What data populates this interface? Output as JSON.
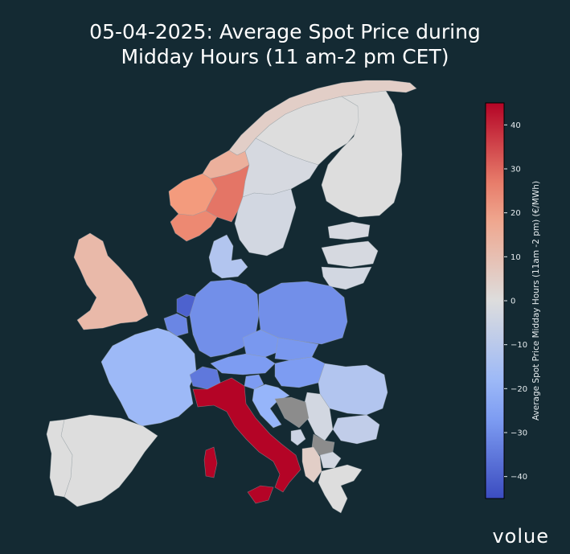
{
  "title": {
    "line1": "05-04-2025: Average Spot Price during",
    "line2": "Midday Hours (11 am-2 pm CET)"
  },
  "colorbar": {
    "label": "Average Spot Price Midday Hours (11am -2 pm) (€/MWh)",
    "min": -45,
    "max": 45,
    "ticks": [
      "40",
      "30",
      "20",
      "10",
      "0",
      "−10",
      "−20",
      "−30",
      "−40"
    ],
    "tick_values": [
      40,
      30,
      20,
      10,
      0,
      -10,
      -20,
      -30,
      -40
    ],
    "colormap": "coolwarm"
  },
  "colors": {
    "background": "#142a33",
    "no_data": "#8c8c8c",
    "border": "#9aa3a8"
  },
  "regions": [
    {
      "name": "Norway North",
      "value": 5
    },
    {
      "name": "Norway Central",
      "value": 15
    },
    {
      "name": "Norway West",
      "value": 22
    },
    {
      "name": "Norway South",
      "value": 25
    },
    {
      "name": "Norway South-East",
      "value": 28
    },
    {
      "name": "Sweden North",
      "value": 0
    },
    {
      "name": "Sweden Central",
      "value": -2
    },
    {
      "name": "Sweden South",
      "value": -3
    },
    {
      "name": "Finland",
      "value": 0
    },
    {
      "name": "Estonia",
      "value": -2
    },
    {
      "name": "Latvia",
      "value": -2
    },
    {
      "name": "Lithuania",
      "value": -3
    },
    {
      "name": "Denmark",
      "value": -12
    },
    {
      "name": "Great Britain",
      "value": 12
    },
    {
      "name": "Netherlands",
      "value": -40
    },
    {
      "name": "Belgium",
      "value": -32
    },
    {
      "name": "France",
      "value": -18
    },
    {
      "name": "Germany",
      "value": -30
    },
    {
      "name": "Poland",
      "value": -30
    },
    {
      "name": "Czechia",
      "value": -28
    },
    {
      "name": "Austria",
      "value": -27
    },
    {
      "name": "Slovakia",
      "value": -28
    },
    {
      "name": "Hungary",
      "value": -27
    },
    {
      "name": "Switzerland",
      "value": -35
    },
    {
      "name": "Slovenia",
      "value": -27
    },
    {
      "name": "Croatia",
      "value": -20
    },
    {
      "name": "Romania",
      "value": -12
    },
    {
      "name": "Bulgaria",
      "value": -8
    },
    {
      "name": "Serbia",
      "value": -3
    },
    {
      "name": "Bosnia and Herzegovina",
      "value": null
    },
    {
      "name": "Montenegro",
      "value": -5
    },
    {
      "name": "Kosovo",
      "value": null
    },
    {
      "name": "North Macedonia",
      "value": -3
    },
    {
      "name": "Albania",
      "value": 5
    },
    {
      "name": "Greece",
      "value": 0
    },
    {
      "name": "Italy",
      "value": 45
    },
    {
      "name": "Spain",
      "value": 0
    },
    {
      "name": "Portugal",
      "value": 0
    }
  ],
  "logo": "volue"
}
